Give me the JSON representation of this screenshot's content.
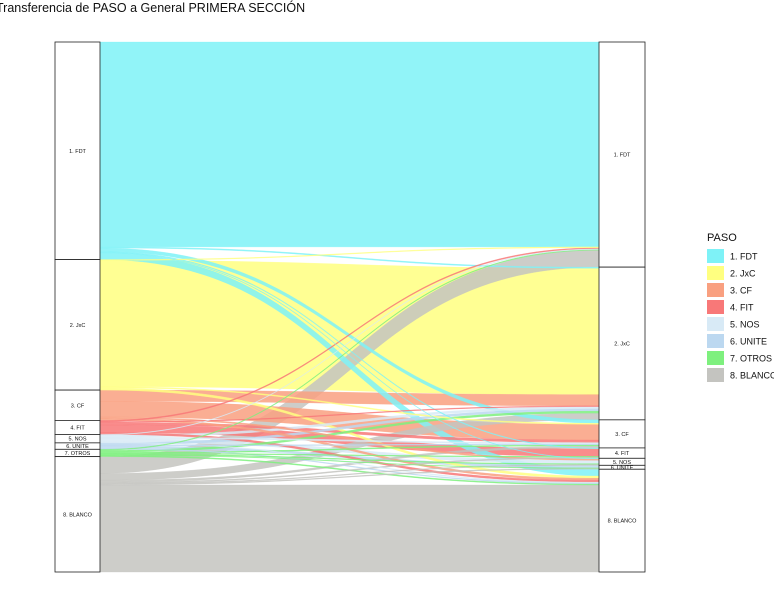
{
  "chart_data": {
    "type": "alluvial",
    "title": "Transferencia de PASO a General PRIMERA SECCIÓN",
    "legend_title": "PASO",
    "legend_position": "right",
    "categories": [
      "1. FDT",
      "2. JxC",
      "3. CF",
      "4. FIT",
      "5. NOS",
      "6. UNITE",
      "7. OTROS",
      "8. BLANCO"
    ],
    "category_colors": [
      "#7ef2f7",
      "#ffff80",
      "#f9a080",
      "#f87878",
      "#d8eaf6",
      "#bcd8f0",
      "#7ef07e",
      "#c4c4c0"
    ],
    "left_axis_labels": [
      "1. FDT",
      "2. JxC",
      "3. CF",
      "4. FIT",
      "5. NOS",
      "6. UNITE",
      "7. OTROS",
      "8. BLANCO"
    ],
    "right_axis_labels": [
      "1. FDT",
      "2. JxC",
      "3. CF",
      "4. FIT",
      "5. NOS",
      "6. UNITE",
      "8. BLANCO"
    ],
    "right_categories": [
      "1. FDT",
      "2. JxC",
      "3. CF",
      "4. FIT",
      "5. NOS",
      "6. UNITE",
      "8. BLANCO"
    ],
    "flows": [
      {
        "from": "1. FDT",
        "to": "1. FDT",
        "value": 36.5
      },
      {
        "from": "1. FDT",
        "to": "2. JxC",
        "value": 0.2
      },
      {
        "from": "1. FDT",
        "to": "3. CF",
        "value": 0.6
      },
      {
        "from": "1. FDT",
        "to": "4. FIT",
        "value": 0.15
      },
      {
        "from": "1. FDT",
        "to": "5. NOS",
        "value": 0.1
      },
      {
        "from": "1. FDT",
        "to": "8. BLANCO",
        "value": 1.2
      },
      {
        "from": "2. JxC",
        "to": "1. FDT",
        "value": 0.15
      },
      {
        "from": "2. JxC",
        "to": "2. JxC",
        "value": 22.5
      },
      {
        "from": "2. JxC",
        "to": "3. CF",
        "value": 0.2
      },
      {
        "from": "2. JxC",
        "to": "8. BLANCO",
        "value": 0.4
      },
      {
        "from": "3. CF",
        "to": "2. JxC",
        "value": 2.0
      },
      {
        "from": "3. CF",
        "to": "3. CF",
        "value": 2.8
      },
      {
        "from": "3. CF",
        "to": "5. NOS",
        "value": 0.25
      },
      {
        "from": "3. CF",
        "to": "8. BLANCO",
        "value": 0.35
      },
      {
        "from": "4. FIT",
        "to": "1. FDT",
        "value": 0.2
      },
      {
        "from": "4. FIT",
        "to": "2. JxC",
        "value": 0.15
      },
      {
        "from": "4. FIT",
        "to": "3. CF",
        "value": 0.45
      },
      {
        "from": "4. FIT",
        "to": "4. FIT",
        "value": 1.35
      },
      {
        "from": "4. FIT",
        "to": "8. BLANCO",
        "value": 0.35
      },
      {
        "from": "5. NOS",
        "to": "1. FDT",
        "value": 0.1
      },
      {
        "from": "5. NOS",
        "to": "2. JxC",
        "value": 0.4
      },
      {
        "from": "5. NOS",
        "to": "3. CF",
        "value": 0.25
      },
      {
        "from": "5. NOS",
        "to": "5. NOS",
        "value": 0.6
      },
      {
        "from": "5. NOS",
        "to": "8. BLANCO",
        "value": 0.15
      },
      {
        "from": "6. UNITE",
        "to": "2. JxC",
        "value": 0.4
      },
      {
        "from": "6. UNITE",
        "to": "3. CF",
        "value": 0.15
      },
      {
        "from": "6. UNITE",
        "to": "6. UNITE",
        "value": 0.45
      },
      {
        "from": "6. UNITE",
        "to": "8. BLANCO",
        "value": 0.15
      },
      {
        "from": "7. OTROS",
        "to": "1. FDT",
        "value": 0.15
      },
      {
        "from": "7. OTROS",
        "to": "2. JxC",
        "value": 0.35
      },
      {
        "from": "7. OTROS",
        "to": "3. CF",
        "value": 0.2
      },
      {
        "from": "7. OTROS",
        "to": "4. FIT",
        "value": 0.15
      },
      {
        "from": "7. OTROS",
        "to": "5. NOS",
        "value": 0.15
      },
      {
        "from": "7. OTROS",
        "to": "6. UNITE",
        "value": 0.1
      },
      {
        "from": "7. OTROS",
        "to": "8. BLANCO",
        "value": 0.2
      },
      {
        "from": "8. BLANCO",
        "to": "1. FDT",
        "value": 3.0
      },
      {
        "from": "8. BLANCO",
        "to": "2. JxC",
        "value": 1.2
      },
      {
        "from": "8. BLANCO",
        "to": "3. CF",
        "value": 0.35
      },
      {
        "from": "8. BLANCO",
        "to": "4. FIT",
        "value": 0.2
      },
      {
        "from": "8. BLANCO",
        "to": "5. NOS",
        "value": 0.15
      },
      {
        "from": "8. BLANCO",
        "to": "6. UNITE",
        "value": 0.15
      },
      {
        "from": "8. BLANCO",
        "to": "8. BLANCO",
        "value": 15.5
      }
    ]
  }
}
